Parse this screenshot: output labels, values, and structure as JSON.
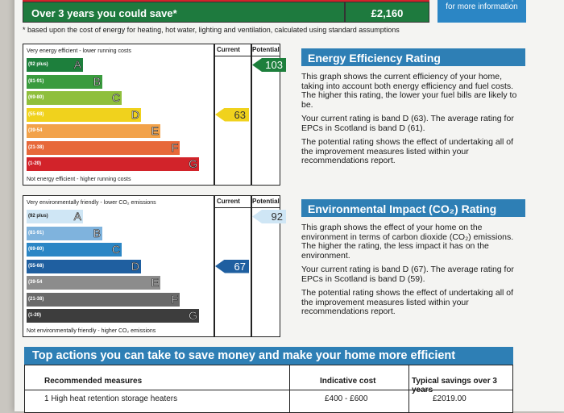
{
  "top": {
    "savings_text": "Over 3 years you could save*",
    "savings_value": "£2,160",
    "recommendation_box": "recommendations report for more information",
    "footnote": "* based upon the cost of energy for heating, hot water, lighting and ventilation, calculated using standard assumptions"
  },
  "energy_chart": {
    "top_note": "Very energy efficient - lower running costs",
    "bottom_note": "Not energy efficient - higher running costs",
    "col_current": "Current",
    "col_potential": "Potential",
    "bands": [
      {
        "range": "(92 plus)",
        "letter": "A",
        "color": "#1d7f3c"
      },
      {
        "range": "(81-91)",
        "letter": "B",
        "color": "#3a9b3e"
      },
      {
        "range": "(69-80)",
        "letter": "C",
        "color": "#8fbf3c"
      },
      {
        "range": "(55-68)",
        "letter": "D",
        "color": "#f0d21d"
      },
      {
        "range": "(39-54",
        "letter": "E",
        "color": "#f2a24a"
      },
      {
        "range": "(21-38)",
        "letter": "F",
        "color": "#e7683a"
      },
      {
        "range": "(1-20)",
        "letter": "G",
        "color": "#d2232a"
      }
    ],
    "current": "63",
    "current_band": 3,
    "current_color": "#f0d21d",
    "potential": "103",
    "potential_band": 0,
    "potential_color": "#1d7f3c"
  },
  "env_chart": {
    "top_note": "Very environmentally friendly - lower CO₂ emissions",
    "bottom_note": "Not environmentally friendly - higher CO₂ emissions",
    "col_current": "Current",
    "col_potential": "Potential",
    "bands": [
      {
        "range": "(92 plus)",
        "letter": "A",
        "color": "#cfe6f5"
      },
      {
        "range": "(81-91)",
        "letter": "B",
        "color": "#7fb3dd"
      },
      {
        "range": "(69-80)",
        "letter": "C",
        "color": "#2b86c5"
      },
      {
        "range": "(55-68)",
        "letter": "D",
        "color": "#1f5fa0"
      },
      {
        "range": "(39-54",
        "letter": "E",
        "color": "#8c8c8c"
      },
      {
        "range": "(21-38)",
        "letter": "F",
        "color": "#6a6a6a"
      },
      {
        "range": "(1-20)",
        "letter": "G",
        "color": "#3d3d3d"
      }
    ],
    "current": "67",
    "current_band": 3,
    "current_color": "#1f5fa0",
    "potential": "92",
    "potential_band": 0,
    "potential_color": "#cfe6f5"
  },
  "ee_text": {
    "title": "Energy Efficiency Rating",
    "p1": "This graph shows the current efficiency of your home, taking into account both energy efficiency and fuel costs. The higher this rating, the lower your fuel bills are likely to be.",
    "p2": "Your current rating is band D (63). The average rating for EPCs in Scotland is band D (61).",
    "p3": "The potential rating shows the effect of undertaking all of the improvement measures listed within your recommendations report."
  },
  "ei_text": {
    "title": "Environmental Impact (CO₂) Rating",
    "p1": "This graph shows the effect of your home on the environment in terms of carbon dioxide (CO₂) emissions. The higher the rating, the less impact it has on the environment.",
    "p2": "Your current rating is band D (67). The average rating for EPCs in Scotland is band D (59).",
    "p3": "The potential rating shows the effect of undertaking all of the improvement measures listed within your recommendations report."
  },
  "actions": {
    "title": "Top actions you can take to save money and make your home more efficient",
    "col_measures": "Recommended measures",
    "col_cost": "Indicative cost",
    "col_savings": "Typical savings over 3 years",
    "rows": [
      {
        "measure": "1 High heat retention storage heaters",
        "cost": "£400 - £600",
        "saving": "£2019.00"
      }
    ]
  }
}
